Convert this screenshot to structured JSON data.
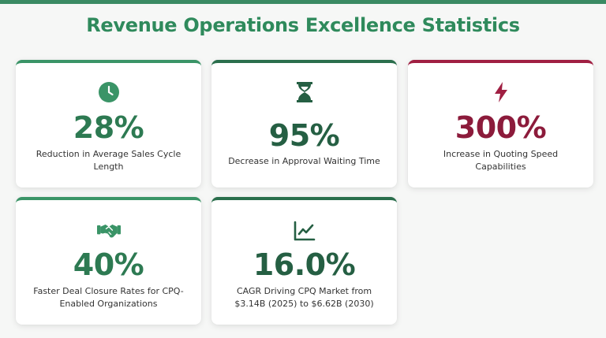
{
  "page": {
    "title": "Revenue Operations Excellence Statistics"
  },
  "colors": {
    "accent_green": "#3a9467",
    "dark_green": "#2a6e4c",
    "crimson": "#a01f42"
  },
  "stats": [
    {
      "icon": "clock-icon",
      "value": "28%",
      "description": "Reduction in Average Sales Cycle Length"
    },
    {
      "icon": "hourglass-icon",
      "value": "95%",
      "description": "Decrease in Approval Waiting Time"
    },
    {
      "icon": "lightning-icon",
      "value": "300%",
      "description": "Increase in Quoting Speed Capabilities"
    },
    {
      "icon": "handshake-icon",
      "value": "40%",
      "description": "Faster Deal Closure Rates for CPQ-Enabled Organizations"
    },
    {
      "icon": "trend-chart-icon",
      "value": "16.0%",
      "description": "CAGR Driving CPQ Market from $3.14B (2025) to $6.62B (2030)"
    }
  ]
}
